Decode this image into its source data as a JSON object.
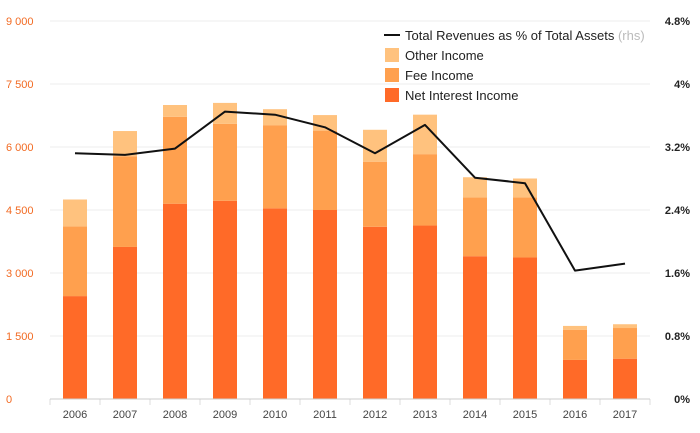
{
  "colors": {
    "net_interest": "#ff6a28",
    "fee": "#ffa04e",
    "other": "#ffc27e",
    "line": "#111111",
    "left_axis_text": "#f26a22",
    "right_axis_text": "#222222",
    "grid": "#eeeeee",
    "muted": "#bbbbbb"
  },
  "chart_data": {
    "type": "bar",
    "stacked": true,
    "categories": [
      "2006",
      "2007",
      "2008",
      "2009",
      "2010",
      "2011",
      "2012",
      "2013",
      "2014",
      "2015",
      "2016",
      "2017"
    ],
    "series": [
      {
        "name": "Net Interest Income",
        "values": [
          2450,
          3620,
          4650,
          4720,
          4540,
          4500,
          4100,
          4130,
          3400,
          3370,
          930,
          960
        ]
      },
      {
        "name": "Fee Income",
        "values": [
          1660,
          2160,
          2070,
          1830,
          1980,
          1890,
          1550,
          1700,
          1400,
          1430,
          720,
          730
        ]
      },
      {
        "name": "Other Income",
        "values": [
          640,
          600,
          280,
          500,
          380,
          370,
          760,
          940,
          480,
          450,
          90,
          90
        ]
      }
    ],
    "line_series": {
      "name": "Total Revenues as % of Total Assets",
      "name_suffix": "(rhs)",
      "values": [
        3.12,
        3.1,
        3.18,
        3.65,
        3.61,
        3.45,
        3.12,
        3.48,
        2.81,
        2.74,
        1.63,
        1.72
      ]
    },
    "y_left": {
      "ylim": [
        0,
        9000
      ],
      "ticks": [
        0,
        1500,
        3000,
        4500,
        6000,
        7500,
        9000
      ],
      "tick_labels": [
        "0",
        "1 500",
        "3 000",
        "4 500",
        "6 000",
        "7 500",
        "9 000"
      ]
    },
    "y_right": {
      "ylim": [
        0,
        4.8
      ],
      "ticks": [
        0,
        0.8,
        1.6,
        2.4,
        3.2,
        4.0,
        4.8
      ],
      "tick_labels": [
        "0%",
        "0.8%",
        "1.6%",
        "2.4%",
        "3.2%",
        "4%",
        "4.8%"
      ]
    },
    "legend_position": "top-right",
    "grid": true
  }
}
